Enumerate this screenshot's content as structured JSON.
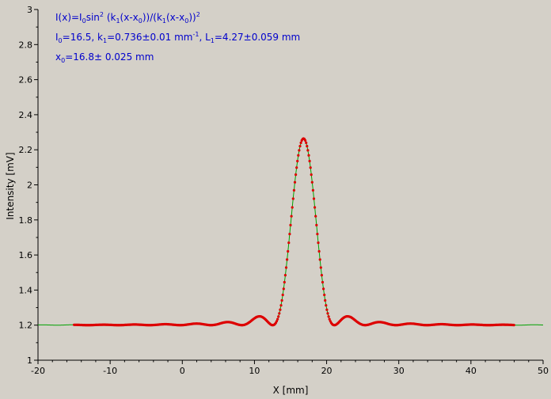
{
  "chart_data": {
    "type": "scatter",
    "title": "",
    "xlabel": "X [mm]",
    "ylabel": "Intensity [mV]",
    "xlim": [
      -20,
      50
    ],
    "ylim": [
      1,
      3
    ],
    "x_ticks": [
      -20,
      -10,
      0,
      10,
      20,
      30,
      40,
      50
    ],
    "y_ticks": [
      1,
      1.2,
      1.4,
      1.6,
      1.8,
      2,
      2.2,
      2.4,
      2.6,
      2.8,
      3
    ],
    "grid": false,
    "annotation": {
      "line1_prefix": "I(x)=I",
      "line1_sub0": "0",
      "line1_mid": "sin",
      "line1_sup": "2",
      "line1_a": " (k",
      "line1_sub1": "1",
      "line1_b": "(x-x",
      "line1_sub2": "0",
      "line1_c": "))/(k",
      "line1_sub3": "1",
      "line1_d": "(x-x",
      "line1_sub4": "0",
      "line1_e": "))",
      "line1_sup2": "2",
      "line2_a": "I",
      "line2_sub0": "0",
      "line2_b": "=16.5,  k",
      "line2_sub1": "1",
      "line2_c": "=0.736±0.01 mm",
      "line2_sup": "-1",
      "line2_d": ",   L",
      "line2_sub2": "1",
      "line2_e": "=4.27±0.059 mm",
      "line3_a": "x",
      "line3_sub0": "0",
      "line3_b": "=16.8±  0.025 mm"
    },
    "series": [
      {
        "color": "#00a000",
        "style": "line",
        "model": {
          "I0": 16.5,
          "k1": 0.736,
          "x0": 16.8,
          "baseline": 1.2,
          "scale": 0.0645
        },
        "x_range": [
          -20,
          50
        ]
      },
      {
        "color": "#dd0000",
        "style": "points",
        "model": {
          "I0": 16.5,
          "k1": 0.736,
          "x0": 16.8,
          "baseline": 1.2,
          "scale": 0.0645
        },
        "x_range": [
          -15,
          46
        ]
      }
    ]
  }
}
